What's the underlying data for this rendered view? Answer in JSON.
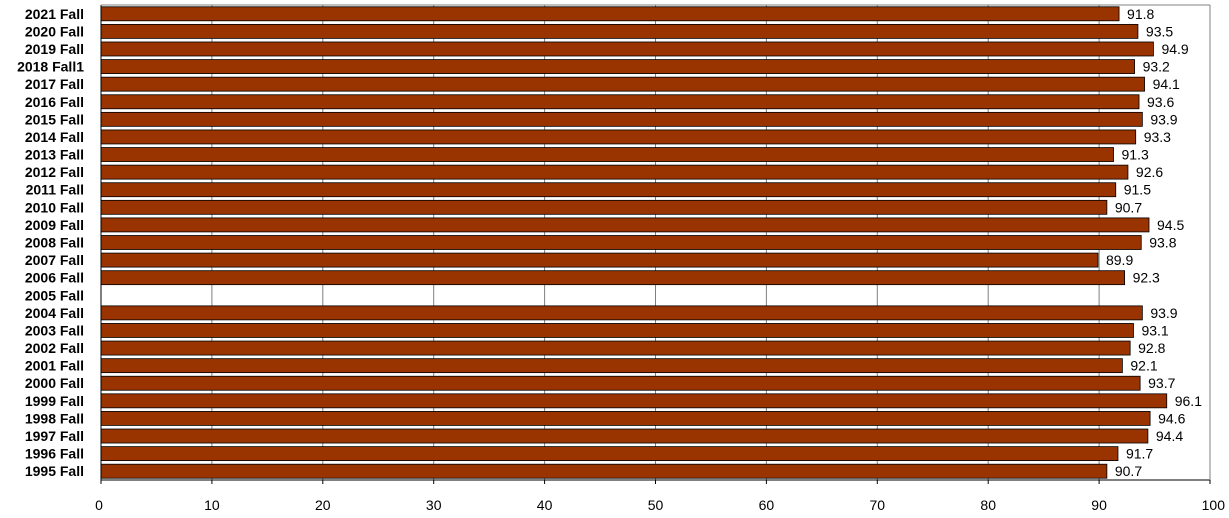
{
  "chart_data": {
    "type": "bar",
    "orientation": "horizontal",
    "categories": [
      "2021 Fall",
      "2020 Fall",
      "2019 Fall",
      "2018 Fall1",
      "2017 Fall",
      "2016 Fall",
      "2015 Fall",
      "2014 Fall",
      "2013 Fall",
      "2012 Fall",
      "2011 Fall",
      "2010 Fall",
      "2009 Fall",
      "2008 Fall",
      "2007 Fall",
      "2006 Fall",
      "2005 Fall",
      "2004 Fall",
      "2003 Fall",
      "2002 Fall",
      "2001 Fall",
      "2000 Fall",
      "1999 Fall",
      "1998 Fall",
      "1997 Fall",
      "1996 Fall",
      "1995 Fall"
    ],
    "values": [
      91.8,
      93.5,
      94.9,
      93.2,
      94.1,
      93.6,
      93.9,
      93.3,
      91.3,
      92.6,
      91.5,
      90.7,
      94.5,
      93.8,
      89.9,
      92.3,
      null,
      93.9,
      93.1,
      92.8,
      92.1,
      93.7,
      96.1,
      94.6,
      94.4,
      91.7,
      90.7
    ],
    "value_labels": [
      "91.8",
      "93.5",
      "94.9",
      "93.2",
      "94.1",
      "93.6",
      "93.9",
      "93.3",
      "91.3",
      "92.6",
      "91.5",
      "90.7",
      "94.5",
      "93.8",
      "89.9",
      "92.3",
      "",
      "93.9",
      "93.1",
      "92.8",
      "92.1",
      "93.7",
      "96.1",
      "94.6",
      "94.4",
      "91.7",
      "90.7"
    ],
    "xlim": [
      0,
      100
    ],
    "xticks": [
      0,
      10,
      20,
      30,
      40,
      50,
      60,
      70,
      80,
      90,
      100
    ],
    "xtick_labels": [
      "0",
      "10",
      "20",
      "30",
      "40",
      "50",
      "60",
      "70",
      "80",
      "90",
      "100"
    ],
    "grid": "vertical",
    "legend": "none",
    "title": "",
    "xlabel": "",
    "ylabel": "",
    "colors": {
      "bar": "#993300",
      "bar_edge": "#000000",
      "grid": "#808080",
      "axis": "#000000"
    }
  }
}
